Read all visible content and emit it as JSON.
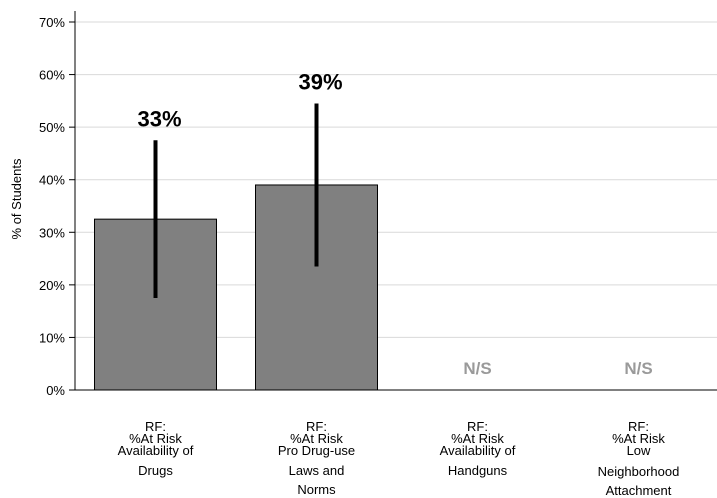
{
  "chart_data": {
    "type": "bar",
    "ylabel": "% of Students",
    "ylim": [
      0,
      70
    ],
    "yticks": [
      "0%",
      "10%",
      "20%",
      "30%",
      "40%",
      "50%",
      "60%",
      "70%"
    ],
    "grid": true,
    "categories": [
      [
        "RF:",
        "%At Risk",
        "Availability of",
        "Drugs"
      ],
      [
        "RF:",
        "%At Risk",
        "Pro Drug-use",
        "Laws and",
        "Norms"
      ],
      [
        "RF:",
        "%At Risk",
        "Availability of",
        "Handguns"
      ],
      [
        "RF:",
        "%At Risk",
        "Low",
        "Neighborhood",
        "Attachment"
      ]
    ],
    "values": [
      32.5,
      39,
      null,
      null
    ],
    "error_low": [
      17.5,
      23.5,
      null,
      null
    ],
    "error_high": [
      47.5,
      54.5,
      null,
      null
    ],
    "value_labels": [
      "33%",
      "39%",
      "N/S",
      "N/S"
    ],
    "bar_color": "#808080",
    "ns_color": "#9a9a9a"
  }
}
